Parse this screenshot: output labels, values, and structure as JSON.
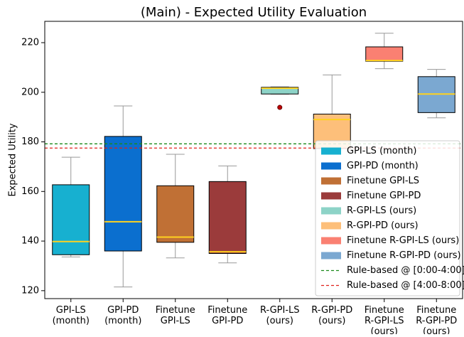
{
  "chart_data": {
    "type": "box",
    "title": "(Main) - Expected Utility Evaluation",
    "y_label": "Expected Utility",
    "categories": [
      "GPI-LS\n(month)",
      "GPI-PD\n(month)",
      "Finetune\nGPI-LS",
      "Finetune\nGPI-PD",
      "R-GPI-LS\n(ours)",
      "R-GPI-PD\n(ours)",
      "Finetune\nR-GPI-LS\n(ours)",
      "Finetune\nR-GPI-PD\n(ours)"
    ],
    "series": [
      {
        "name": "GPI-LS (month)",
        "color": "#17b0d0",
        "min": 133.6,
        "q1": 134.5,
        "median": 139.8,
        "q3": 162.7,
        "max": 173.8,
        "outliers": []
      },
      {
        "name": "GPI-PD (month)",
        "color": "#0b6fcf",
        "min": 121.5,
        "q1": 136,
        "median": 147.8,
        "q3": 182.2,
        "max": 194.5,
        "outliers": []
      },
      {
        "name": "Finetune GPI-LS",
        "color": "#c07035",
        "min": 133.2,
        "q1": 139.5,
        "median": 141.6,
        "q3": 162.3,
        "max": 175,
        "outliers": []
      },
      {
        "name": "Finetune GPI-PD",
        "color": "#9b3b3b",
        "min": 131.2,
        "q1": 135,
        "median": 135.7,
        "q3": 164,
        "max": 170.3,
        "outliers": []
      },
      {
        "name": "R-GPI-LS (ours)",
        "color": "#8dd3c7",
        "min": 199.2,
        "q1": 199.3,
        "median": 201.6,
        "q3": 202,
        "max": 202.2,
        "outliers": [
          193.9
        ]
      },
      {
        "name": "R-GPI-PD (ours)",
        "color": "#fdbf7a",
        "min": 177.2,
        "q1": 177.3,
        "median": 189,
        "q3": 191.2,
        "max": 207,
        "outliers": []
      },
      {
        "name": "Finetune R-GPI-LS (ours)",
        "color": "#fa8072",
        "min": 209.5,
        "q1": 212.5,
        "median": 212.8,
        "q3": 218.3,
        "max": 223.8,
        "outliers": []
      },
      {
        "name": "Finetune R-GPI-PD (ours)",
        "color": "#7ba8d1",
        "min": 189.7,
        "q1": 191.8,
        "median": 199.3,
        "q3": 206.3,
        "max": 209.2,
        "outliers": []
      }
    ],
    "median_color": "#ffd21f",
    "hlines": [
      {
        "name": "Rule-based @ [0:00-4:00]",
        "value": 179.2,
        "color": "#1a8a1a"
      },
      {
        "name": "Rule-based @ [4:00-8:00]",
        "value": 177.5,
        "color": "#e0201a"
      }
    ],
    "ylim": [
      116.8,
      228.6
    ],
    "yticks": [
      120,
      140,
      160,
      180,
      200,
      220
    ],
    "legend": "lower right"
  }
}
